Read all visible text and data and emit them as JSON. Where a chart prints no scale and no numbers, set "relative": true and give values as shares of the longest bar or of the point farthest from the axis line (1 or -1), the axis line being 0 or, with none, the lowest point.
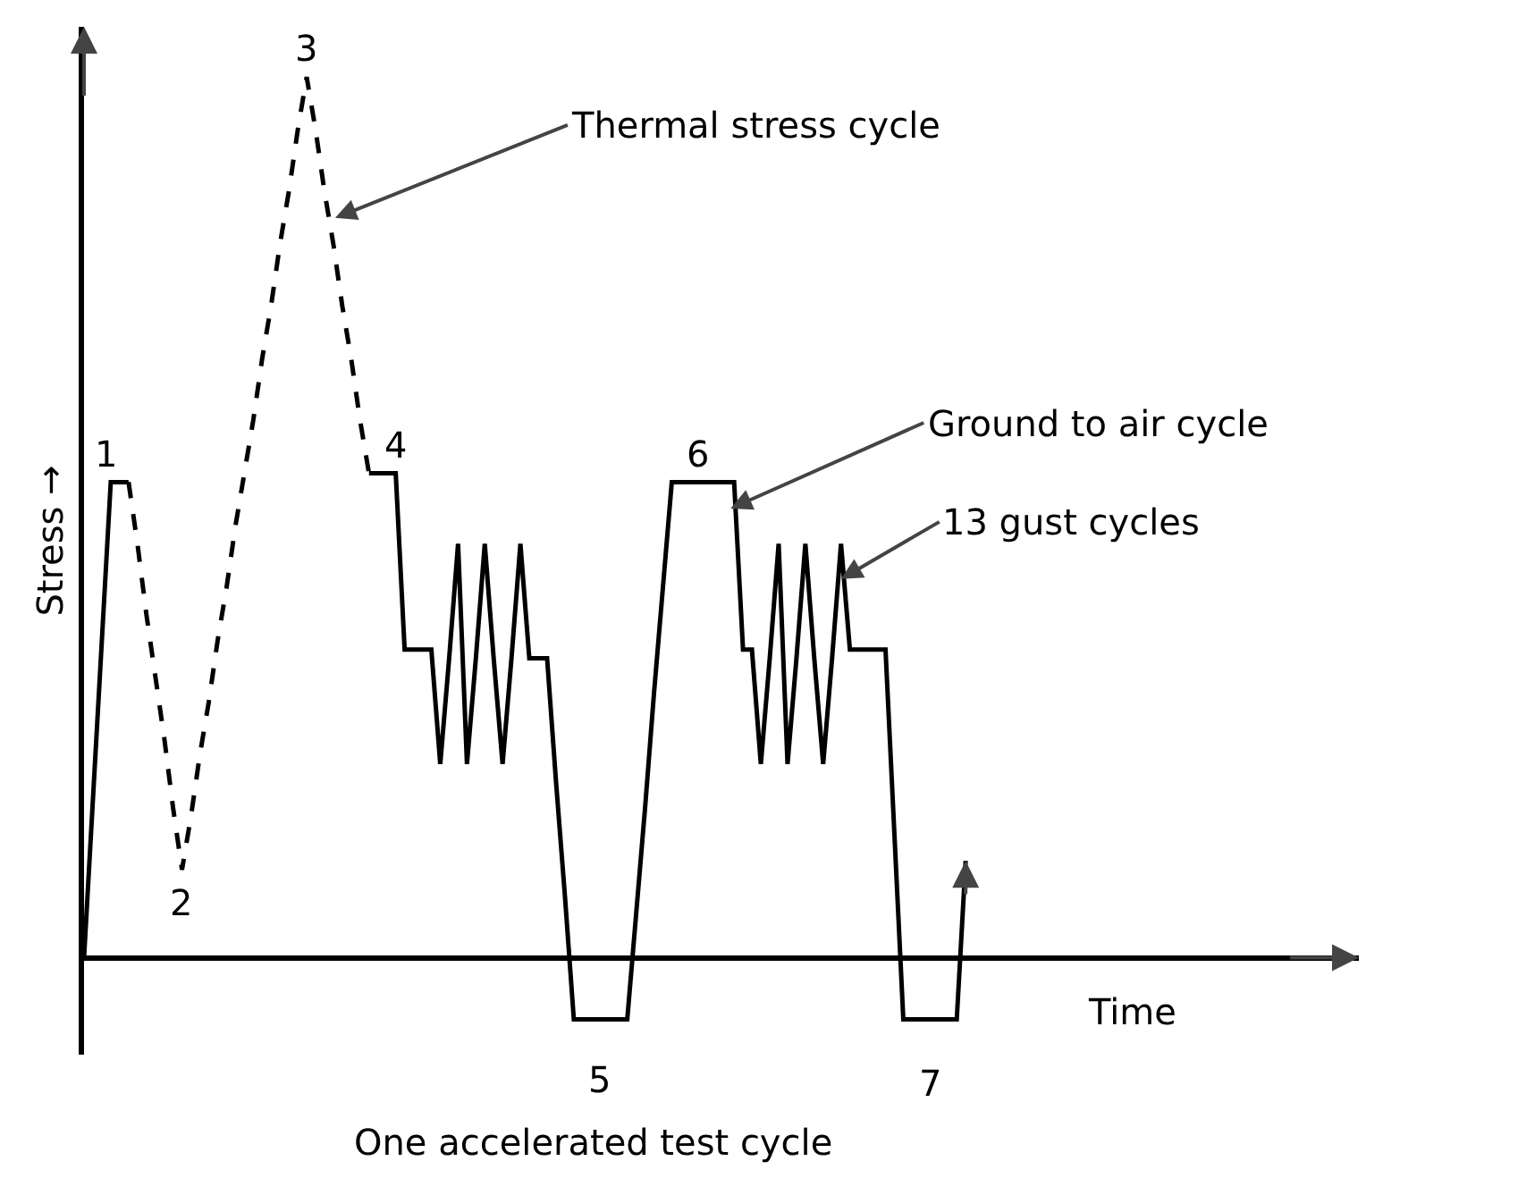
{
  "chart_data": {
    "type": "line",
    "relative": true,
    "xlabel": "Time",
    "ylabel": "Stress →",
    "marker": "none",
    "categories": [
      null,
      null,
      null,
      null,
      null,
      null,
      null,
      null,
      null,
      null,
      null,
      null,
      null,
      null,
      null,
      null,
      null,
      null,
      null,
      null,
      null,
      null,
      null,
      null,
      null,
      null,
      null,
      null,
      null,
      null,
      null,
      null,
      null,
      null,
      null,
      null,
      null,
      null,
      null,
      null,
      null,
      null,
      null,
      null,
      null,
      null,
      null,
      null,
      null,
      null,
      null,
      null,
      null,
      null,
      null,
      null,
      null,
      null,
      null,
      null,
      null,
      null,
      null,
      null,
      null,
      null,
      null,
      null,
      null,
      null,
      null,
      null,
      null,
      null,
      null,
      null,
      null,
      null,
      null,
      null,
      null,
      null,
      null,
      null,
      null,
      null,
      null,
      null,
      null,
      null,
      null,
      null,
      null,
      null,
      null,
      null,
      null,
      null,
      null,
      null
    ],
    "series": [
      {
        "color": "#000000",
        "line_style": "solid",
        "values": [
          0,
          0.18,
          0.36,
          0.54,
          0.54,
          0.54,
          null,
          null,
          null,
          null,
          null,
          null,
          null,
          null,
          null,
          null,
          null,
          null,
          null,
          null,
          null,
          null,
          null,
          null,
          null,
          null,
          null,
          null,
          null,
          null,
          null,
          null,
          null,
          null,
          null,
          null,
          null,
          null,
          null,
          null,
          null,
          null,
          null,
          null,
          null,
          null,
          null,
          null,
          null,
          null,
          null,
          null,
          null,
          null,
          null,
          null,
          null,
          null,
          null,
          null,
          null,
          null,
          null,
          null,
          null,
          null,
          null,
          null,
          null,
          null,
          null,
          null,
          null,
          null,
          null,
          null,
          null,
          null,
          null,
          null,
          null,
          null,
          null,
          null,
          null,
          null,
          null,
          null,
          null,
          null,
          null,
          null,
          null,
          null,
          null,
          null,
          null,
          null,
          null,
          null
        ]
      },
      {
        "color": "#000000",
        "line_style": "dashed",
        "values": [
          null,
          null,
          null,
          null,
          null,
          0.54,
          0.47,
          0.39,
          0.32,
          0.25,
          0.17,
          0.1,
          0.16,
          0.23,
          0.29,
          0.36,
          0.42,
          0.49,
          0.55,
          0.61,
          0.68,
          0.74,
          0.81,
          0.87,
          0.94,
          1,
          0.94,
          0.87,
          0.81,
          0.74,
          0.68,
          0.61,
          0.55,
          null,
          null,
          null,
          null,
          null,
          null,
          null,
          null,
          null,
          null,
          null,
          null,
          null,
          null,
          null,
          null,
          null,
          null,
          null,
          null,
          null,
          null,
          null,
          null,
          null,
          null,
          null,
          null,
          null,
          null,
          null,
          null,
          null,
          null,
          null,
          null,
          null,
          null,
          null,
          null,
          null,
          null,
          null,
          null,
          null,
          null,
          null,
          null,
          null,
          null,
          null,
          null,
          null,
          null,
          null,
          null,
          null,
          null,
          null,
          null,
          null,
          null,
          null,
          null,
          null,
          null,
          null
        ]
      },
      {
        "color": "#000000",
        "line_style": "solid",
        "values": [
          null,
          null,
          null,
          null,
          null,
          null,
          null,
          null,
          null,
          null,
          null,
          null,
          null,
          null,
          null,
          null,
          null,
          null,
          null,
          null,
          null,
          null,
          null,
          null,
          null,
          null,
          null,
          null,
          null,
          null,
          null,
          null,
          0.55,
          0.55,
          0.55,
          0.55,
          0.35,
          0.35,
          0.35,
          0.35,
          0.22,
          0.34,
          0.47,
          0.22,
          0.34,
          0.47,
          0.34,
          0.22,
          0.34,
          0.47,
          0.34,
          0.34,
          0.34,
          0.2,
          0.07,
          -0.07,
          -0.07,
          -0.07,
          -0.07,
          -0.07,
          -0.07,
          -0.07,
          0.05,
          0.17,
          0.3,
          0.42,
          0.54,
          0.54,
          0.54,
          0.54,
          0.54,
          0.54,
          0.54,
          0.54,
          0.35,
          0.35,
          0.22,
          0.34,
          0.47,
          0.22,
          0.34,
          0.47,
          0.34,
          0.22,
          0.34,
          0.47,
          0.35,
          0.35,
          0.35,
          0.35,
          0.35,
          0.14,
          -0.07,
          -0.07,
          -0.07,
          -0.07,
          -0.07,
          -0.07,
          -0.07,
          0.11
        ]
      }
    ],
    "annotations": [
      {
        "text": "1",
        "y": 0.54
      },
      {
        "text": "2",
        "y": 0.1
      },
      {
        "text": "3",
        "y": 1
      },
      {
        "text": "4",
        "y": 0.55
      },
      {
        "text": "5",
        "y": -0.07
      },
      {
        "text": "6",
        "y": 0.54
      },
      {
        "text": "7",
        "y": -0.07
      },
      "Thermal stress cycle",
      "Ground to air cycle",
      "13 gust cycles",
      "One accelerated test cycle"
    ]
  }
}
